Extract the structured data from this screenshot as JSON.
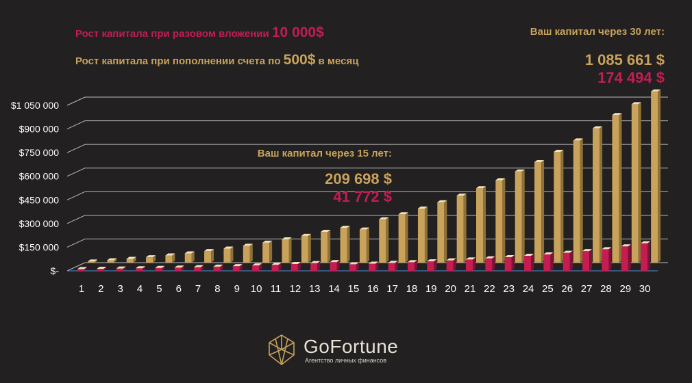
{
  "legend": {
    "red_prefix": "Рост  капитала  при разовом  вложении ",
    "red_value": "10 000$",
    "gold_prefix": "Рост капитала  при пополнении счета по ",
    "gold_value": "500$",
    "gold_suffix": " в месяц"
  },
  "annotation_30": {
    "caption": "Ваш капитал  через 30 лет:",
    "gold_value": "1 085 661 $",
    "red_value": "174 494 $"
  },
  "annotation_15": {
    "caption": "Ваш капитал  через 15 лет:",
    "gold_value": "209 698 $",
    "red_value": "41 772 $"
  },
  "brand": {
    "name": "GoFortune",
    "tagline": "Агентство личных финансов"
  },
  "colors": {
    "gold": "#c9a35b",
    "red": "#c41d52",
    "background": "#222020",
    "grid": "#bdbdbd"
  },
  "chart_data": {
    "type": "bar",
    "categories": [
      "1",
      "2",
      "3",
      "4",
      "5",
      "6",
      "7",
      "8",
      "9",
      "10",
      "11",
      "12",
      "13",
      "14",
      "15",
      "16",
      "17",
      "18",
      "19",
      "20",
      "21",
      "22",
      "23",
      "24",
      "25",
      "26",
      "27",
      "28",
      "29",
      "30"
    ],
    "series": [
      {
        "name": "Рост капитала при разовом вложении 10 000$",
        "color": "#c41d52",
        "values": [
          11300,
          12800,
          14400,
          16300,
          18400,
          20800,
          23500,
          26600,
          30000,
          33900,
          38300,
          43300,
          48900,
          55300,
          41772,
          45800,
          50200,
          55000,
          60300,
          66100,
          72400,
          79300,
          86900,
          95200,
          104400,
          114400,
          125400,
          137400,
          155000,
          174494
        ]
      },
      {
        "name": "Рост капитала при пополнении счета по 500$ в месяц",
        "color": "#c9a35b",
        "values": [
          6800,
          14400,
          24000,
          34000,
          45500,
          58500,
          73000,
          89000,
          107000,
          126500,
          147500,
          170000,
          195000,
          221000,
          209698,
          275000,
          307000,
          343000,
          383000,
          425000,
          472000,
          523000,
          578000,
          638000,
          703000,
          775000,
          852000,
          936000,
          1005000,
          1085661
        ]
      }
    ],
    "yticks": [
      0,
      150000,
      300000,
      450000,
      600000,
      750000,
      900000,
      1050000
    ],
    "ytick_labels": [
      "$-",
      "$150 000",
      "$300 000",
      "$450 000",
      "$600 000",
      "$750 000",
      "$900 000",
      "$1 050 000"
    ],
    "ylim": [
      0,
      1050000
    ]
  }
}
